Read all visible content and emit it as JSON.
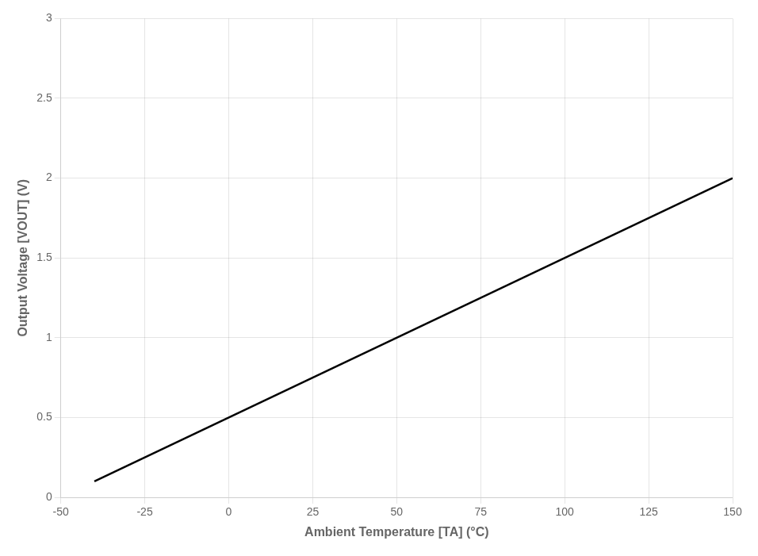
{
  "chart_data": {
    "type": "line",
    "x": [
      -40,
      150
    ],
    "values": [
      0.1,
      2.0
    ],
    "color": "#000000",
    "xlabel": "Ambient Temperature [TA] (°C)",
    "ylabel": "Output Voltage [VOUT] (V)",
    "xlim": [
      -50,
      150
    ],
    "ylim": [
      0,
      3
    ],
    "xticks": [
      -50,
      -25,
      0,
      25,
      50,
      75,
      100,
      125,
      150
    ],
    "yticks": [
      0,
      0.5,
      1,
      1.5,
      2,
      2.5,
      3
    ],
    "grid": true
  }
}
